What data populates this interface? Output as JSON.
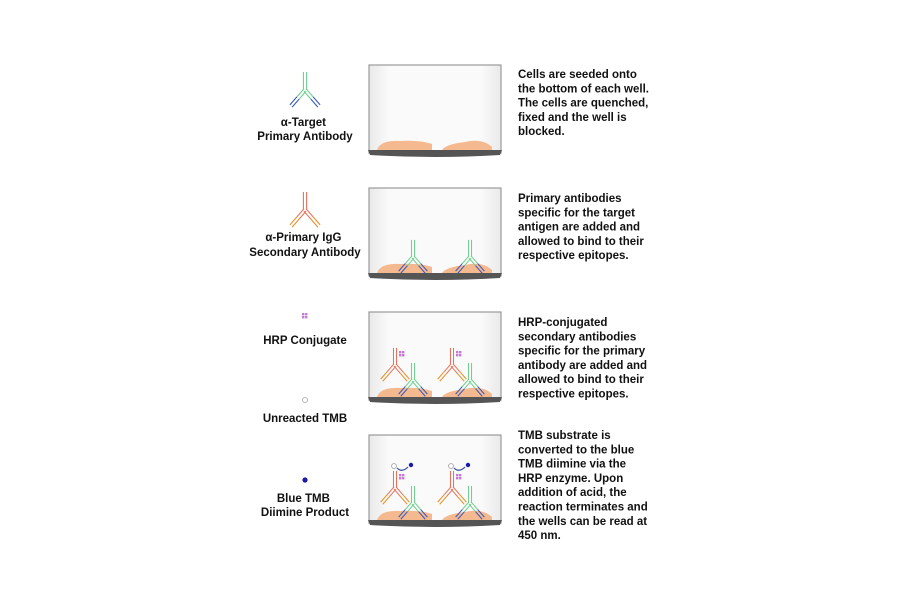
{
  "legend": {
    "primary_antibody": [
      "α-Target",
      "Primary Antibody"
    ],
    "secondary_antibody": [
      "α-Primary IgG",
      "Secondary Antibody"
    ],
    "hrp": [
      "HRP Conjugate"
    ],
    "unreacted_tmb": [
      "Unreacted TMB"
    ],
    "blue_tmb": [
      "Blue TMB",
      "Diimine Product"
    ]
  },
  "steps": [
    {
      "lines": [
        "Cells are seeded onto",
        "the bottom of each well.",
        "The cells are quenched,",
        "fixed and the well is",
        "blocked."
      ]
    },
    {
      "lines": [
        "Primary antibodies",
        "specific for the target",
        "antigen are added and",
        "allowed to bind to their",
        "respective epitopes."
      ]
    },
    {
      "lines": [
        "HRP-conjugated",
        "secondary antibodies",
        "specific for the primary",
        "antibody are added and",
        "allowed to bind to their",
        "respective epitopes."
      ]
    },
    {
      "lines": [
        "TMB substrate is",
        "converted to the blue",
        "TMB diimine via the",
        "HRP enzyme. Upon",
        "addition of acid, the",
        "reaction terminates and",
        "the wells can be read at",
        "450 nm."
      ]
    }
  ],
  "colors": {
    "primary_stem": "#6fd08f",
    "primary_tip": "#3a58b8",
    "secondary_stem": "#e8735a",
    "secondary_tip": "#e8902a",
    "hrp": "#c77bd6",
    "cells": "#f5b990",
    "tmb_blue": "#1a1aa8",
    "well_base": "#555555"
  }
}
